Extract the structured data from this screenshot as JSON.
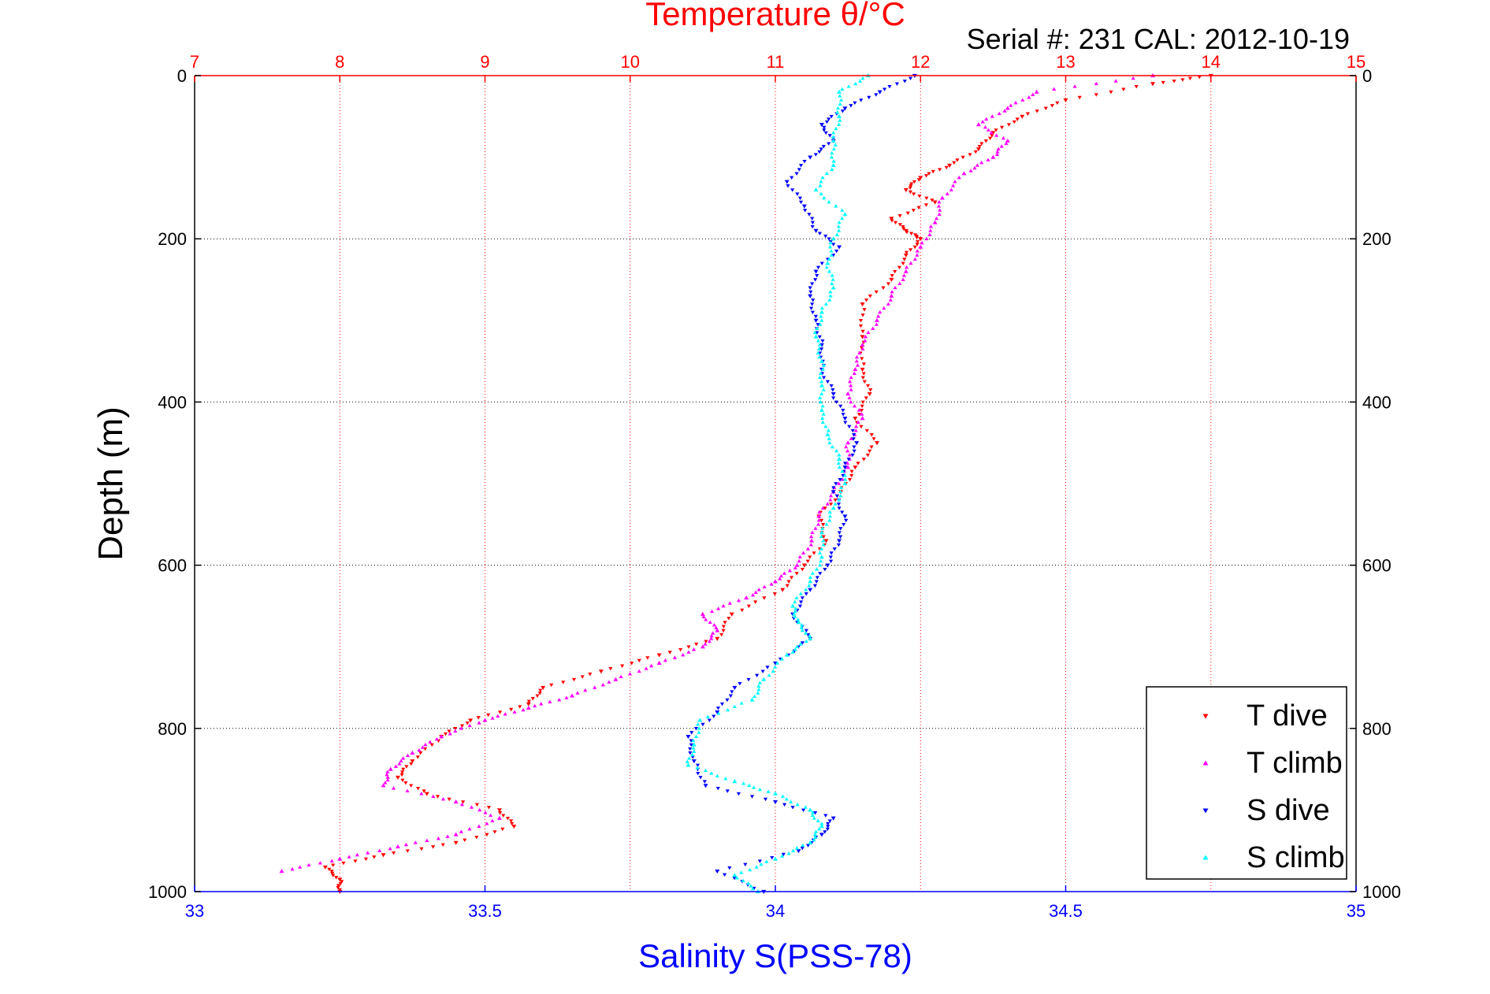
{
  "chart_data": {
    "type": "scatter",
    "title": "Temperature θ/°C",
    "subtitle": "Serial #: 231  CAL: 2012-10-19",
    "xlabel": "Salinity S(PSS-78)",
    "ylabel": "Depth (m)",
    "temperature_axis": {
      "range": [
        7,
        15
      ],
      "ticks": [
        "7",
        "8",
        "9",
        "10",
        "11",
        "12",
        "13",
        "14",
        "15"
      ],
      "color": "#ff0000",
      "position": "top"
    },
    "salinity_axis": {
      "range": [
        33,
        35
      ],
      "ticks": [
        "33",
        "33.5",
        "34",
        "34.5",
        "35"
      ],
      "color": "#0000ff",
      "position": "bottom"
    },
    "depth_axis": {
      "range": [
        0,
        1000
      ],
      "reversed": true,
      "ticks": [
        "0",
        "200",
        "400",
        "600",
        "800",
        "1000"
      ]
    },
    "grid": "dotted",
    "legend_position": "bottom-right",
    "series": [
      {
        "name": "T dive",
        "axis": "temperature",
        "color": "#ff0000",
        "marker": "triangle-down",
        "points": [
          [
            14.0,
            0
          ],
          [
            13.6,
            10
          ],
          [
            13.0,
            30
          ],
          [
            12.7,
            50
          ],
          [
            12.5,
            70
          ],
          [
            12.4,
            90
          ],
          [
            12.2,
            110
          ],
          [
            12.0,
            125
          ],
          [
            11.9,
            140
          ],
          [
            12.1,
            155
          ],
          [
            11.8,
            175
          ],
          [
            11.9,
            190
          ],
          [
            12.0,
            200
          ],
          [
            11.9,
            220
          ],
          [
            11.8,
            250
          ],
          [
            11.6,
            280
          ],
          [
            11.6,
            320
          ],
          [
            11.6,
            360
          ],
          [
            11.65,
            390
          ],
          [
            11.55,
            420
          ],
          [
            11.7,
            450
          ],
          [
            11.55,
            480
          ],
          [
            11.45,
            510
          ],
          [
            11.3,
            540
          ],
          [
            11.35,
            570
          ],
          [
            11.2,
            600
          ],
          [
            11.05,
            630
          ],
          [
            10.7,
            660
          ],
          [
            10.6,
            690
          ],
          [
            10.2,
            710
          ],
          [
            9.8,
            730
          ],
          [
            9.4,
            750
          ],
          [
            9.3,
            770
          ],
          [
            8.9,
            790
          ],
          [
            8.7,
            810
          ],
          [
            8.5,
            840
          ],
          [
            8.4,
            860
          ],
          [
            8.6,
            880
          ],
          [
            9.1,
            900
          ],
          [
            9.2,
            920
          ],
          [
            8.8,
            940
          ],
          [
            8.3,
            955
          ],
          [
            7.9,
            970
          ],
          [
            8.0,
            985
          ],
          [
            8.0,
            1000
          ]
        ]
      },
      {
        "name": "T climb",
        "axis": "temperature",
        "color": "#ff00ff",
        "marker": "triangle-up",
        "points": [
          [
            7.6,
            975
          ],
          [
            8.0,
            960
          ],
          [
            8.4,
            945
          ],
          [
            8.8,
            930
          ],
          [
            9.1,
            910
          ],
          [
            8.8,
            890
          ],
          [
            8.3,
            870
          ],
          [
            8.35,
            850
          ],
          [
            8.5,
            830
          ],
          [
            8.7,
            810
          ],
          [
            9.0,
            790
          ],
          [
            9.3,
            775
          ],
          [
            9.6,
            760
          ],
          [
            9.9,
            740
          ],
          [
            10.2,
            720
          ],
          [
            10.5,
            700
          ],
          [
            10.6,
            680
          ],
          [
            10.5,
            660
          ],
          [
            10.8,
            640
          ],
          [
            11.0,
            620
          ],
          [
            11.15,
            600
          ],
          [
            11.25,
            570
          ],
          [
            11.3,
            540
          ],
          [
            11.4,
            510
          ],
          [
            11.5,
            480
          ],
          [
            11.5,
            450
          ],
          [
            11.6,
            420
          ],
          [
            11.5,
            390
          ],
          [
            11.55,
            360
          ],
          [
            11.6,
            330
          ],
          [
            11.7,
            300
          ],
          [
            11.8,
            270
          ],
          [
            11.9,
            240
          ],
          [
            12.0,
            210
          ],
          [
            12.1,
            180
          ],
          [
            12.15,
            150
          ],
          [
            12.3,
            120
          ],
          [
            12.5,
            100
          ],
          [
            12.6,
            80
          ],
          [
            12.4,
            60
          ],
          [
            12.6,
            40
          ],
          [
            12.8,
            20
          ],
          [
            13.6,
            0
          ]
        ]
      },
      {
        "name": "S dive",
        "axis": "salinity",
        "color": "#0000ff",
        "marker": "triangle-down",
        "points": [
          [
            34.24,
            0
          ],
          [
            34.18,
            20
          ],
          [
            34.12,
            40
          ],
          [
            34.08,
            60
          ],
          [
            34.1,
            80
          ],
          [
            34.06,
            100
          ],
          [
            34.02,
            130
          ],
          [
            34.05,
            160
          ],
          [
            34.07,
            190
          ],
          [
            34.11,
            210
          ],
          [
            34.07,
            240
          ],
          [
            34.06,
            270
          ],
          [
            34.07,
            300
          ],
          [
            34.08,
            330
          ],
          [
            34.08,
            360
          ],
          [
            34.1,
            390
          ],
          [
            34.12,
            420
          ],
          [
            34.14,
            450
          ],
          [
            34.12,
            480
          ],
          [
            34.1,
            510
          ],
          [
            34.12,
            540
          ],
          [
            34.11,
            570
          ],
          [
            34.09,
            600
          ],
          [
            34.06,
            630
          ],
          [
            34.03,
            660
          ],
          [
            34.06,
            690
          ],
          [
            34.0,
            720
          ],
          [
            33.93,
            750
          ],
          [
            33.9,
            780
          ],
          [
            33.85,
            810
          ],
          [
            33.86,
            840
          ],
          [
            33.88,
            870
          ],
          [
            34.0,
            890
          ],
          [
            34.1,
            910
          ],
          [
            34.08,
            930
          ],
          [
            34.04,
            950
          ],
          [
            33.9,
            975
          ],
          [
            33.98,
            1000
          ]
        ]
      },
      {
        "name": "S climb",
        "axis": "salinity",
        "color": "#00ffff",
        "marker": "triangle-up",
        "points": [
          [
            33.97,
            1000
          ],
          [
            33.93,
            980
          ],
          [
            34.0,
            960
          ],
          [
            34.06,
            940
          ],
          [
            34.08,
            920
          ],
          [
            34.06,
            900
          ],
          [
            34.0,
            880
          ],
          [
            33.93,
            865
          ],
          [
            33.85,
            845
          ],
          [
            33.86,
            820
          ],
          [
            33.87,
            790
          ],
          [
            33.96,
            765
          ],
          [
            33.98,
            740
          ],
          [
            34.02,
            710
          ],
          [
            34.06,
            690
          ],
          [
            34.04,
            670
          ],
          [
            34.03,
            650
          ],
          [
            34.06,
            620
          ],
          [
            34.08,
            590
          ],
          [
            34.08,
            560
          ],
          [
            34.1,
            530
          ],
          [
            34.12,
            500
          ],
          [
            34.11,
            470
          ],
          [
            34.09,
            440
          ],
          [
            34.08,
            410
          ],
          [
            34.08,
            380
          ],
          [
            34.08,
            350
          ],
          [
            34.07,
            320
          ],
          [
            34.08,
            290
          ],
          [
            34.1,
            260
          ],
          [
            34.09,
            230
          ],
          [
            34.1,
            200
          ],
          [
            34.12,
            170
          ],
          [
            34.07,
            140
          ],
          [
            34.1,
            110
          ],
          [
            34.1,
            80
          ],
          [
            34.11,
            50
          ],
          [
            34.11,
            20
          ],
          [
            34.16,
            0
          ]
        ]
      }
    ]
  }
}
